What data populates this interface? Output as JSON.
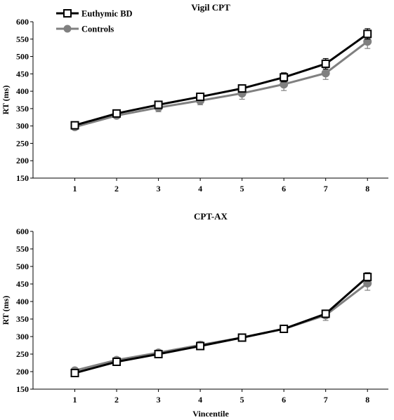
{
  "legend": {
    "items": [
      {
        "label": "Euthymic BD",
        "marker": "open-square",
        "line_color": "#000000"
      },
      {
        "label": "Controls",
        "marker": "filled-circle",
        "line_color": "#808080"
      }
    ],
    "placement": "top-left"
  },
  "chart_data": [
    {
      "type": "line",
      "title": "Vigil CPT",
      "xlabel": "",
      "ylabel": "RT (ms)",
      "categories": [
        "1",
        "2",
        "3",
        "4",
        "5",
        "6",
        "7",
        "8"
      ],
      "ylim": [
        150,
        600
      ],
      "yticks": [
        150,
        200,
        250,
        300,
        350,
        400,
        450,
        500,
        550,
        600
      ],
      "grid": false,
      "series": [
        {
          "name": "Euthymic BD",
          "color": "#000000",
          "marker": "open-square",
          "values": [
            302,
            336,
            361,
            384,
            408,
            440,
            479,
            565
          ],
          "errors": [
            5,
            6,
            7,
            8,
            10,
            13,
            15,
            15
          ]
        },
        {
          "name": "Controls",
          "color": "#808080",
          "marker": "filled-circle",
          "values": [
            297,
            330,
            353,
            373,
            394,
            420,
            452,
            543
          ],
          "errors": [
            5,
            6,
            12,
            12,
            17,
            18,
            18,
            20
          ]
        }
      ]
    },
    {
      "type": "line",
      "title": "CPT-AX",
      "xlabel": "Vincentile",
      "ylabel": "RT (ms)",
      "categories": [
        "1",
        "2",
        "3",
        "4",
        "5",
        "6",
        "7",
        "8"
      ],
      "ylim": [
        150,
        600
      ],
      "yticks": [
        150,
        200,
        250,
        300,
        350,
        400,
        450,
        500,
        550,
        600
      ],
      "grid": false,
      "series": [
        {
          "name": "Euthymic BD",
          "color": "#000000",
          "marker": "open-square",
          "values": [
            196,
            228,
            250,
            273,
            297,
            322,
            365,
            470
          ],
          "errors": [
            4,
            5,
            6,
            7,
            7,
            8,
            10,
            12
          ]
        },
        {
          "name": "Controls",
          "color": "#808080",
          "marker": "filled-circle",
          "values": [
            203,
            233,
            254,
            276,
            297,
            322,
            361,
            452
          ],
          "errors": [
            5,
            6,
            6,
            10,
            7,
            10,
            15,
            20
          ]
        }
      ]
    }
  ]
}
